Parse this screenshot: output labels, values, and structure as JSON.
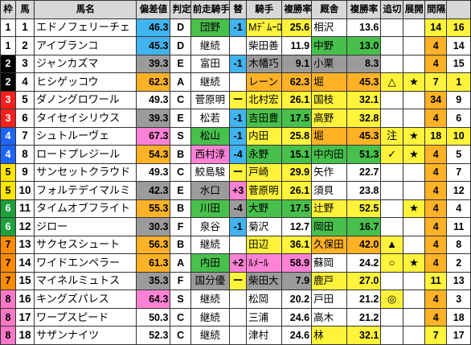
{
  "headers": [
    "枠",
    "馬",
    "馬名",
    "偏差値",
    "判定",
    "前走騎手",
    "替",
    "騎手",
    "複勝率",
    "厩舎",
    "複勝率",
    "追切",
    "展開",
    "間隔",
    ""
  ],
  "rows": [
    {
      "frame": "1",
      "num": "1",
      "name": "エドノフェリーチェ",
      "dev": "46.3",
      "grade": "D",
      "prev_jockey": "団野",
      "change": "-1",
      "jockey": "Mﾃﾞﾑｰﾛ",
      "j_rate": "25.6",
      "stable": "相沢",
      "s_rate": "13.6",
      "oikiri": "",
      "tenkai": "",
      "interval": "14",
      "popular": "16",
      "dev_color": "g-blue",
      "pj_color": "g-green",
      "chg_color": "g-blue",
      "j_color": "g-yellow",
      "st_color": "",
      "int_color": "g-yellow",
      "pop_color": "g-yellow"
    },
    {
      "frame": "1",
      "num": "2",
      "name": "アイブランコ",
      "dev": "45.3",
      "grade": "D",
      "prev_jockey": "継続",
      "change": "",
      "jockey": "柴田善",
      "j_rate": "11.9",
      "stable": "中野",
      "s_rate": "13.0",
      "oikiri": "",
      "tenkai": "",
      "interval": "4",
      "popular": "14",
      "dev_color": "g-blue",
      "pj_color": "",
      "chg_color": "",
      "j_color": "",
      "st_color": "g-green",
      "int_color": "g-orange",
      "pop_color": ""
    },
    {
      "frame": "2",
      "num": "3",
      "name": "ジャンカズマ",
      "dev": "39.3",
      "grade": "E",
      "prev_jockey": "富田",
      "change": "-1",
      "jockey": "木幡巧",
      "j_rate": "9.1",
      "stable": "小栗",
      "s_rate": "8.3",
      "oikiri": "",
      "tenkai": "",
      "interval": "4",
      "popular": "15",
      "dev_color": "g-grey",
      "pj_color": "",
      "chg_color": "g-blue",
      "j_color": "g-grey",
      "st_color": "g-grey",
      "int_color": "g-orange",
      "pop_color": ""
    },
    {
      "frame": "2",
      "num": "4",
      "name": "ヒシゲッコウ",
      "dev": "62.3",
      "grade": "A",
      "prev_jockey": "継続",
      "change": "",
      "jockey": "レーン",
      "j_rate": "62.3",
      "stable": "堀",
      "s_rate": "45.3",
      "oikiri": "△",
      "tenkai": "★",
      "interval": "7",
      "popular": "1",
      "dev_color": "g-orange",
      "pj_color": "",
      "chg_color": "",
      "j_color": "g-orange",
      "st_color": "g-orange",
      "int_color": "g-yellow",
      "pop_color": "g-yellow"
    },
    {
      "frame": "3",
      "num": "5",
      "name": "ダノングロワール",
      "dev": "49.3",
      "grade": "C",
      "prev_jockey": "菅原明",
      "change": "ー",
      "jockey": "北村宏",
      "j_rate": "26.1",
      "stable": "国枝",
      "s_rate": "32.1",
      "oikiri": "",
      "tenkai": "",
      "interval": "34",
      "popular": "9",
      "dev_color": "",
      "pj_color": "",
      "chg_color": "hl-yellow",
      "j_color": "g-yellow",
      "st_color": "g-yellow",
      "int_color": "g-orange",
      "pop_color": ""
    },
    {
      "frame": "3",
      "num": "6",
      "name": "タイセイシリウス",
      "dev": "39.3",
      "grade": "E",
      "prev_jockey": "松若",
      "change": "-1",
      "jockey": "吉田豊",
      "j_rate": "17.5",
      "stable": "高野",
      "s_rate": "32.8",
      "oikiri": "",
      "tenkai": "",
      "interval": "4",
      "popular": "6",
      "dev_color": "g-grey",
      "pj_color": "",
      "chg_color": "g-blue",
      "j_color": "g-green",
      "st_color": "g-yellow",
      "int_color": "g-orange",
      "pop_color": ""
    },
    {
      "frame": "4",
      "num": "7",
      "name": "シュトルーヴェ",
      "dev": "67.3",
      "grade": "S",
      "prev_jockey": "松山",
      "change": "-1",
      "jockey": "内田",
      "j_rate": "25.8",
      "stable": "堀",
      "s_rate": "45.3",
      "oikiri": "注",
      "tenkai": "★",
      "interval": "18",
      "popular": "10",
      "dev_color": "g-pink",
      "pj_color": "g-green",
      "chg_color": "g-blue",
      "j_color": "g-yellow",
      "st_color": "g-orange",
      "int_color": "g-yellow",
      "pop_color": "g-yellow"
    },
    {
      "frame": "4",
      "num": "8",
      "name": "ロードプレジール",
      "dev": "54.3",
      "grade": "B",
      "prev_jockey": "西村淳",
      "change": "-4",
      "jockey": "永野",
      "j_rate": "15.1",
      "stable": "中内田",
      "s_rate": "51.3",
      "oikiri": "✓",
      "tenkai": "★",
      "interval": "4",
      "popular": "5",
      "dev_color": "g-orange",
      "pj_color": "hl-pink",
      "chg_color": "g-blue",
      "j_color": "g-green",
      "st_color": "g-green",
      "int_color": "g-orange",
      "pop_color": ""
    },
    {
      "frame": "5",
      "num": "9",
      "name": "サンセットクラウド",
      "dev": "49.3",
      "grade": "C",
      "prev_jockey": "鮫島駿",
      "change": "ー",
      "jockey": "戸崎",
      "j_rate": "29.9",
      "stable": "矢作",
      "s_rate": "22.7",
      "oikiri": "",
      "tenkai": "",
      "interval": "4",
      "popular": "7",
      "dev_color": "",
      "pj_color": "",
      "chg_color": "hl-yellow",
      "j_color": "g-yellow",
      "st_color": "",
      "int_color": "g-orange",
      "pop_color": ""
    },
    {
      "frame": "5",
      "num": "10",
      "name": "フォルテデイマルミ",
      "dev": "42.3",
      "grade": "E",
      "prev_jockey": "水口",
      "change": "+3",
      "jockey": "菅原明",
      "j_rate": "26.1",
      "stable": "須貝",
      "s_rate": "23.8",
      "oikiri": "",
      "tenkai": "",
      "interval": "4",
      "popular": "12",
      "dev_color": "g-grey",
      "pj_color": "g-grey",
      "chg_color": "hl-pink",
      "j_color": "g-yellow",
      "st_color": "",
      "int_color": "g-orange",
      "pop_color": ""
    },
    {
      "frame": "6",
      "num": "11",
      "name": "タイムオブフライト",
      "dev": "55.3",
      "grade": "B",
      "prev_jockey": "川田",
      "change": "-4",
      "jockey": "大野",
      "j_rate": "17.5",
      "stable": "辻野",
      "s_rate": "52.5",
      "oikiri": "",
      "tenkai": "★",
      "interval": "4",
      "popular": "4",
      "dev_color": "g-orange",
      "pj_color": "g-green",
      "chg_color": "g-grey",
      "j_color": "g-green",
      "st_color": "g-yellow",
      "int_color": "g-orange",
      "pop_color": ""
    },
    {
      "frame": "6",
      "num": "12",
      "name": "ジロー",
      "dev": "30.3",
      "grade": "F",
      "prev_jockey": "泉谷",
      "change": "-1",
      "jockey": "菊沢",
      "j_rate": "12.7",
      "stable": "岡田",
      "s_rate": "16.7",
      "oikiri": "",
      "tenkai": "",
      "interval": "4",
      "popular": "11",
      "dev_color": "g-grey",
      "pj_color": "",
      "chg_color": "g-blue",
      "j_color": "",
      "st_color": "g-green",
      "int_color": "g-orange",
      "pop_color": ""
    },
    {
      "frame": "7",
      "num": "13",
      "name": "サクセスシュート",
      "dev": "56.3",
      "grade": "B",
      "prev_jockey": "継続",
      "change": "",
      "jockey": "田辺",
      "j_rate": "36.1",
      "stable": "久保田",
      "s_rate": "42.0",
      "oikiri": "▲",
      "tenkai": "",
      "interval": "4",
      "popular": "8",
      "dev_color": "g-orange",
      "pj_color": "",
      "chg_color": "",
      "j_color": "g-yellow",
      "st_color": "g-orange",
      "int_color": "g-orange",
      "pop_color": ""
    },
    {
      "frame": "7",
      "num": "14",
      "name": "ワイドエンペラー",
      "dev": "61.3",
      "grade": "A",
      "prev_jockey": "内田",
      "change": "+2",
      "jockey": "ﾙﾒｰﾙ",
      "j_rate": "58.9",
      "stable": "蘇岡",
      "s_rate": "24.2",
      "oikiri": "○",
      "tenkai": "★",
      "interval": "4",
      "popular": "2",
      "dev_color": "g-orange",
      "pj_color": "g-green",
      "chg_color": "hl-pink",
      "j_color": "g-pink",
      "st_color": "",
      "int_color": "g-orange",
      "pop_color": ""
    },
    {
      "frame": "7",
      "num": "15",
      "name": "マイネルミュトス",
      "dev": "35.3",
      "grade": "F",
      "prev_jockey": "国分優",
      "change": "ー",
      "jockey": "柴田大",
      "j_rate": "7.9",
      "stable": "鹿戸",
      "s_rate": "27.0",
      "oikiri": "",
      "tenkai": "",
      "interval": "11",
      "popular": "13",
      "dev_color": "g-grey",
      "pj_color": "g-grey",
      "chg_color": "hl-yellow",
      "j_color": "g-grey",
      "st_color": "g-yellow",
      "int_color": "g-yellow",
      "pop_color": ""
    },
    {
      "frame": "8",
      "num": "16",
      "name": "キングズパレス",
      "dev": "64.3",
      "grade": "S",
      "prev_jockey": "継続",
      "change": "",
      "jockey": "松岡",
      "j_rate": "20.2",
      "stable": "戸田",
      "s_rate": "21.2",
      "oikiri": "◎",
      "tenkai": "",
      "interval": "4",
      "popular": "3",
      "dev_color": "g-pink",
      "pj_color": "",
      "chg_color": "",
      "j_color": "",
      "st_color": "",
      "int_color": "g-orange",
      "pop_color": ""
    },
    {
      "frame": "8",
      "num": "17",
      "name": "ワープスピード",
      "dev": "50.3",
      "grade": "C",
      "prev_jockey": "継続",
      "change": "",
      "jockey": "三浦",
      "j_rate": "24.6",
      "stable": "高木",
      "s_rate": "21.2",
      "oikiri": "",
      "tenkai": "",
      "interval": "4",
      "popular": "18",
      "dev_color": "",
      "pj_color": "",
      "chg_color": "",
      "j_color": "",
      "st_color": "",
      "int_color": "g-orange",
      "pop_color": ""
    },
    {
      "frame": "8",
      "num": "18",
      "name": "サザンナイツ",
      "dev": "52.3",
      "grade": "C",
      "prev_jockey": "継続",
      "change": "",
      "jockey": "津村",
      "j_rate": "24.6",
      "stable": "林",
      "s_rate": "32.1",
      "oikiri": "",
      "tenkai": "",
      "interval": "7",
      "popular": "17",
      "dev_color": "",
      "pj_color": "",
      "chg_color": "",
      "j_color": "",
      "st_color": "g-yellow",
      "int_color": "g-yellow",
      "pop_color": ""
    }
  ]
}
